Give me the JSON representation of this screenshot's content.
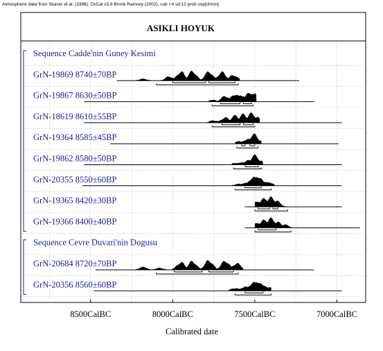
{
  "header_note": "Atmospheric data from Stuiver et al. (1998); OxCal v3.8 Bronk Ramsey (2002); cub r:4 sd:12 prob usp[chron]",
  "chart_data": {
    "type": "multiple-plot",
    "title": "ASIKLI HOYUK",
    "xlabel": "Calibrated date",
    "x_unit": "CalBC",
    "x_direction": "older-left",
    "xlim_calBC": [
      8925,
      6825
    ],
    "ticks": [
      {
        "value": 8500,
        "label": "8500CalBC"
      },
      {
        "value": 8000,
        "label": "8000CalBC"
      },
      {
        "value": 7500,
        "label": "7500CalBC"
      },
      {
        "value": 7000,
        "label": "7000CalBC"
      }
    ],
    "grid": true,
    "rows": [
      {
        "kind": "sequence",
        "label": "Sequence Cadde'nin Guney Kesimi"
      },
      {
        "kind": "sample",
        "label": "GrN-19869  8740±70BP",
        "id": "GrN-19869",
        "bp": 8740,
        "err": 70,
        "dist": {
          "start": 8240,
          "end": 7590,
          "peaks": [
            [
              8180,
              0.2
            ],
            [
              8020,
              0.45
            ],
            [
              7950,
              0.95
            ],
            [
              7880,
              1.0
            ],
            [
              7780,
              0.95
            ],
            [
              7700,
              0.9
            ],
            [
              7630,
              0.6
            ]
          ]
        },
        "line": [
          8340,
          7230
        ],
        "sigma68": [
          [
            8000,
            7800
          ],
          [
            7780,
            7620
          ]
        ],
        "sigma95": [
          [
            8100,
            7600
          ]
        ]
      },
      {
        "kind": "sample",
        "label": "GrN-19867  8630±50BP",
        "id": "GrN-19867",
        "bp": 8630,
        "err": 50,
        "dist": {
          "start": 7780,
          "end": 7490,
          "peaks": [
            [
              7760,
              0.2
            ],
            [
              7680,
              0.6
            ],
            [
              7620,
              0.8
            ],
            [
              7580,
              0.7
            ],
            [
              7530,
              1.0
            ],
            [
              7500,
              0.8
            ]
          ]
        },
        "line": [
          8540,
          7140
        ],
        "sigma68": [
          [
            7710,
            7590
          ],
          [
            7570,
            7520
          ]
        ],
        "sigma95": [
          [
            7760,
            7510
          ]
        ]
      },
      {
        "kind": "sample",
        "label": "GrN-18619  8610±55BP",
        "id": "GrN-18619",
        "bp": 8610,
        "err": 55,
        "dist": {
          "start": 7790,
          "end": 7470,
          "peaks": [
            [
              7750,
              0.25
            ],
            [
              7680,
              0.55
            ],
            [
              7620,
              0.75
            ],
            [
              7570,
              0.9
            ],
            [
              7520,
              1.0
            ],
            [
              7490,
              0.6
            ]
          ]
        },
        "line": [
          8540,
          6970
        ],
        "sigma68": [
          [
            7700,
            7590
          ],
          [
            7570,
            7510
          ]
        ],
        "sigma95": [
          [
            7760,
            7500
          ]
        ]
      },
      {
        "kind": "sample",
        "label": "GrN-19364  8585±45BP",
        "id": "GrN-19364",
        "bp": 8585,
        "err": 45,
        "dist": {
          "start": 7620,
          "end": 7460,
          "peaks": [
            [
              7600,
              0.25
            ],
            [
              7560,
              0.35
            ],
            [
              7530,
              0.55
            ],
            [
              7505,
              1.0
            ],
            [
              7480,
              0.4
            ]
          ]
        },
        "line": [
          8380,
          6990
        ],
        "sigma68": [
          [
            7580,
            7560
          ],
          [
            7530,
            7500
          ]
        ],
        "sigma95": [
          [
            7610,
            7480
          ]
        ]
      },
      {
        "kind": "sample",
        "label": "GrN-19862  8580±50BP",
        "id": "GrN-19862",
        "bp": 8580,
        "err": 50,
        "dist": {
          "start": 7640,
          "end": 7450,
          "peaks": [
            [
              7620,
              0.2
            ],
            [
              7570,
              0.3
            ],
            [
              7530,
              0.55
            ],
            [
              7500,
              1.0
            ],
            [
              7470,
              0.45
            ]
          ]
        },
        "line": [
          8540,
          6970
        ],
        "sigma68": [
          [
            7560,
            7480
          ]
        ],
        "sigma95": [
          [
            7630,
            7460
          ]
        ]
      },
      {
        "kind": "sample",
        "label": "GrN-20355  8550±60BP",
        "id": "GrN-20355",
        "bp": 8550,
        "err": 60,
        "dist": {
          "start": 7640,
          "end": 7380,
          "peaks": [
            [
              7600,
              0.2
            ],
            [
              7560,
              0.3
            ],
            [
              7510,
              0.9
            ],
            [
              7480,
              1.0
            ],
            [
              7430,
              0.45
            ],
            [
              7400,
              0.25
            ]
          ]
        },
        "line": [
          8550,
          6970
        ],
        "sigma68": [
          [
            7560,
            7460
          ]
        ],
        "sigma95": [
          [
            7620,
            7400
          ]
        ]
      },
      {
        "kind": "sample",
        "label": "GrN-19365  8420±30BP",
        "id": "GrN-19365",
        "bp": 8420,
        "err": 30,
        "dist": {
          "start": 7500,
          "end": 7300,
          "peaks": [
            [
              7480,
              0.6
            ],
            [
              7440,
              0.9
            ],
            [
              7400,
              1.0
            ],
            [
              7370,
              0.65
            ],
            [
              7230,
              0.4
            ]
          ]
        },
        "line": [
          7560,
          6970
        ],
        "sigma68": [
          [
            7480,
            7410
          ],
          [
            7390,
            7360
          ]
        ],
        "sigma95": [
          [
            7500,
            7300
          ]
        ]
      },
      {
        "kind": "sample",
        "label": "GrN-19366  8400±40BP",
        "id": "GrN-19366",
        "bp": 8400,
        "err": 40,
        "dist": {
          "start": 7500,
          "end": 7280,
          "peaks": [
            [
              7480,
              0.55
            ],
            [
              7440,
              0.85
            ],
            [
              7400,
              1.0
            ],
            [
              7360,
              0.6
            ],
            [
              7320,
              0.35
            ]
          ]
        },
        "line": [
          7560,
          6860
        ],
        "sigma68": [
          [
            7480,
            7370
          ]
        ],
        "sigma95": [
          [
            7500,
            7280
          ]
        ]
      },
      {
        "kind": "sequence",
        "label": "Sequence Cevre Duvari'nin Dogusu"
      },
      {
        "kind": "sample",
        "label": "GrN-20684  8720±70BP",
        "id": "GrN-20684",
        "bp": 8720,
        "err": 70,
        "dist": {
          "start": 8240,
          "end": 7570,
          "peaks": [
            [
              8180,
              0.3
            ],
            [
              8080,
              0.2
            ],
            [
              7950,
              0.8
            ],
            [
              7880,
              0.9
            ],
            [
              7780,
              1.0
            ],
            [
              7680,
              0.95
            ],
            [
              7610,
              0.7
            ]
          ]
        },
        "line": [
          8470,
          7140
        ],
        "sigma68": [
          [
            7990,
            7820
          ],
          [
            7780,
            7630
          ]
        ],
        "sigma95": [
          [
            8100,
            7600
          ]
        ]
      },
      {
        "kind": "sample",
        "label": "GrN-20356  8560±60BP",
        "id": "GrN-20356",
        "bp": 8560,
        "err": 60,
        "dist": {
          "start": 7660,
          "end": 7400,
          "peaks": [
            [
              7620,
              0.3
            ],
            [
              7560,
              0.45
            ],
            [
              7510,
              0.9
            ],
            [
              7480,
              1.0
            ],
            [
              7440,
              0.55
            ],
            [
              7410,
              0.35
            ]
          ]
        },
        "line": [
          8480,
          6970
        ],
        "sigma68": [
          [
            7560,
            7450
          ]
        ],
        "sigma95": [
          [
            7620,
            7400
          ]
        ]
      }
    ]
  }
}
